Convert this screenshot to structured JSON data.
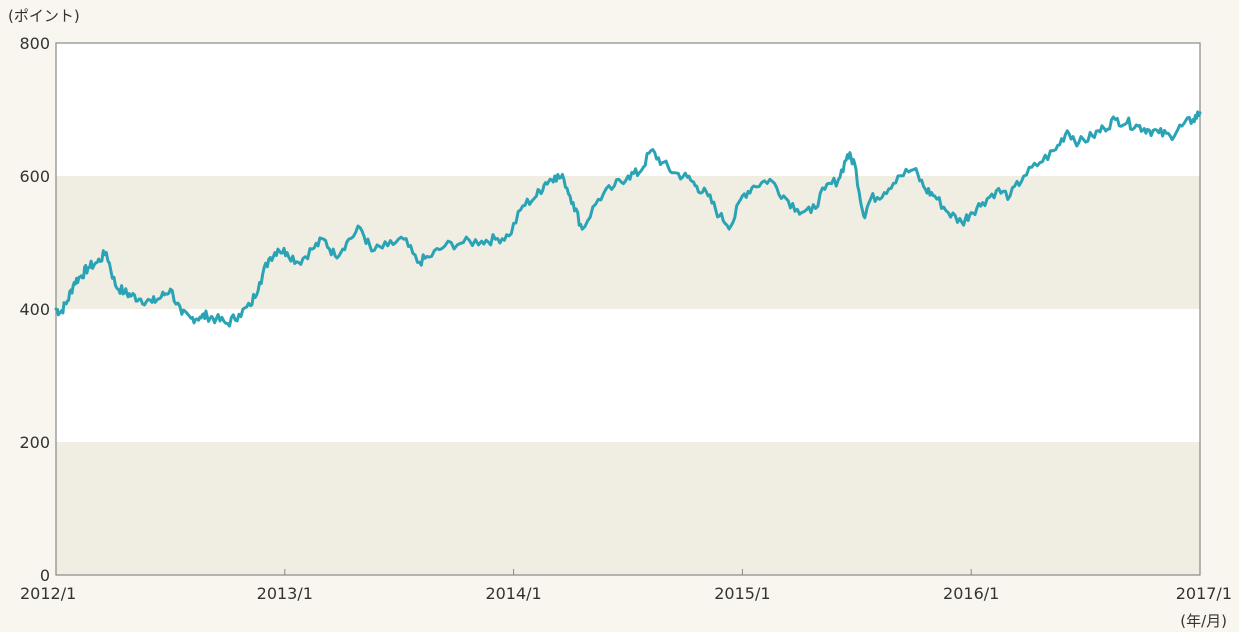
{
  "chart_data": {
    "type": "line",
    "ylabel": "(ポイント)",
    "xunit": "(年/月)",
    "ylim": [
      0,
      800
    ],
    "xlim": [
      "2012/1",
      "2017/1"
    ],
    "yticks": [
      "0",
      "200",
      "400",
      "600",
      "800"
    ],
    "xticks": [
      "2012/1",
      "2013/1",
      "2014/1",
      "2015/1",
      "2016/1",
      "2017/1"
    ],
    "grid": false,
    "band_colors": {
      "shaded": "#f0eee3",
      "plain": "#ffffff",
      "border": "#888888"
    },
    "line_color": "#2aa4b5",
    "series": [
      {
        "x": [
          2012.0,
          2012.02,
          2012.05,
          2012.08,
          2012.11,
          2012.14,
          2012.18,
          2012.22,
          2012.26,
          2012.3,
          2012.33,
          2012.37,
          2012.42,
          2012.46,
          2012.5,
          2012.55,
          2012.59,
          2012.63,
          2012.66,
          2012.7,
          2012.75,
          2012.8,
          2012.85,
          2012.89,
          2012.93,
          2012.97,
          2013.01,
          2013.06,
          2013.12,
          2013.17,
          2013.22,
          2013.27,
          2013.33,
          2013.38,
          2013.45,
          2013.52,
          2013.58,
          2013.63,
          2013.7,
          2013.78,
          2013.86,
          2013.92,
          2013.98,
          2014.04,
          2014.1,
          2014.14,
          2014.18,
          2014.22,
          2014.26,
          2014.3,
          2014.37,
          2014.44,
          2014.5,
          2014.55,
          2014.6,
          2014.65,
          2014.7,
          2014.76,
          2014.8,
          2014.85,
          2014.9,
          2014.95,
          2015.0,
          2015.05,
          2015.12,
          2015.18,
          2015.24,
          2015.3,
          2015.36,
          2015.42,
          2015.46,
          2015.49,
          2015.53,
          2015.56,
          2015.62,
          2015.68,
          2015.75,
          2015.8,
          2015.84,
          2015.9,
          2015.96,
          2016.0,
          2016.05,
          2016.11,
          2016.17,
          2016.23,
          2016.3,
          2016.37,
          2016.42,
          2016.47,
          2016.53,
          2016.58,
          2016.63,
          2016.68,
          2016.73,
          2016.77,
          2016.82,
          2016.87,
          2016.92,
          2016.97,
          2017.0
        ],
        "y": [
          400,
          395,
          412,
          440,
          450,
          462,
          470,
          485,
          435,
          425,
          420,
          415,
          410,
          418,
          430,
          392,
          386,
          388,
          390,
          385,
          378,
          392,
          405,
          440,
          475,
          490,
          485,
          470,
          490,
          505,
          480,
          500,
          522,
          487,
          495,
          505,
          470,
          478,
          495,
          500,
          502,
          505,
          510,
          555,
          570,
          590,
          600,
          595,
          560,
          520,
          565,
          585,
          600,
          605,
          638,
          620,
          605,
          598,
          585,
          570,
          540,
          525,
          570,
          585,
          595,
          570,
          550,
          545,
          580,
          595,
          632,
          620,
          540,
          565,
          575,
          600,
          610,
          580,
          570,
          545,
          530,
          545,
          560,
          578,
          570,
          600,
          620,
          640,
          668,
          650,
          660,
          672,
          685,
          680,
          675,
          670,
          665,
          660,
          675,
          685,
          695
        ]
      }
    ]
  }
}
